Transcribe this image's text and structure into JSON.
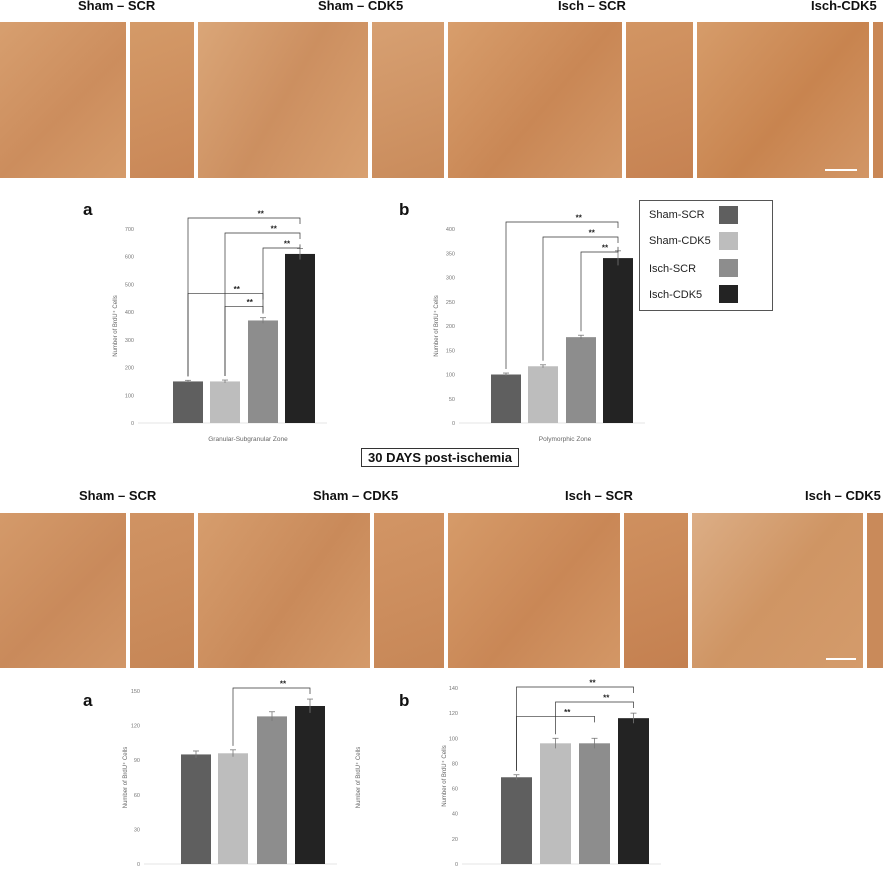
{
  "top_labels": [
    "Sham – SCR",
    "Sham – CDK5",
    "Isch – SCR",
    "Isch-CDK5"
  ],
  "middle_caption": "30 DAYS post-ischemia",
  "bottom_labels": [
    "Sham – SCR",
    "Sham – CDK5",
    "Isch – SCR",
    "Isch – CDK5"
  ],
  "legend": [
    {
      "label": "Sham-SCR",
      "color": "#5f5f5f"
    },
    {
      "label": "Sham-CDK5",
      "color": "#bdbdbd"
    },
    {
      "label": "Isch-SCR",
      "color": "#8d8d8d"
    },
    {
      "label": "Isch-CDK5",
      "color": "#232323"
    }
  ],
  "chart_data": [
    {
      "type": "bar",
      "panel": "a",
      "categories": [
        "Sham-SCR",
        "Sham-CDK5",
        "Isch-SCR",
        "Isch-CDK5"
      ],
      "values": [
        150,
        150,
        370,
        610
      ],
      "errors": [
        4,
        5,
        10,
        20
      ],
      "ylabel": "Number of BrdU⁺ Cells",
      "xlabel": "Granular-Subgranular Zone",
      "ylim": [
        0,
        700
      ],
      "yticks": [
        0,
        100,
        200,
        300,
        400,
        500,
        600,
        700
      ],
      "significance": [
        {
          "from": 0,
          "to": 3,
          "label": "**"
        },
        {
          "from": 1,
          "to": 3,
          "label": "**"
        },
        {
          "from": 2,
          "to": 3,
          "label": "**"
        },
        {
          "from": 0,
          "to": 2,
          "label": "**"
        },
        {
          "from": 1,
          "to": 2,
          "label": "**"
        }
      ]
    },
    {
      "type": "bar",
      "panel": "b",
      "categories": [
        "Sham-SCR",
        "Sham-CDK5",
        "Isch-SCR",
        "Isch-CDK5"
      ],
      "values": [
        100,
        117,
        177,
        340
      ],
      "errors": [
        3,
        3,
        4,
        15
      ],
      "ylabel": "Number of BrdU⁺ Cells",
      "xlabel": "Polymorphic Zone",
      "ylim": [
        0,
        400
      ],
      "yticks": [
        0,
        50,
        100,
        150,
        200,
        250,
        300,
        350,
        400
      ],
      "significance": [
        {
          "from": 0,
          "to": 3,
          "label": "**"
        },
        {
          "from": 1,
          "to": 3,
          "label": "**"
        },
        {
          "from": 2,
          "to": 3,
          "label": "**"
        }
      ]
    },
    {
      "type": "bar",
      "panel": "a",
      "categories": [
        "Sham-SCR",
        "Sham-CDK5",
        "Isch-SCR",
        "Isch-CDK5"
      ],
      "values": [
        95,
        96,
        128,
        137
      ],
      "errors": [
        3,
        3,
        4,
        6
      ],
      "ylabel": "Number of BrdU⁺ Cells",
      "ylabel2": "Number of BrdU⁺ Cells",
      "ylim": [
        0,
        150
      ],
      "yticks": [
        0,
        30,
        60,
        90,
        120,
        150
      ],
      "significance": [
        {
          "from": 1,
          "to": 3,
          "label": "**"
        }
      ]
    },
    {
      "type": "bar",
      "panel": "b",
      "categories": [
        "Sham-SCR",
        "Sham-CDK5",
        "Isch-SCR",
        "Isch-CDK5"
      ],
      "values": [
        69,
        96,
        96,
        116
      ],
      "errors": [
        2,
        4,
        4,
        4
      ],
      "ylabel": "Number of BrdU⁺ Cells",
      "ylim": [
        0,
        140
      ],
      "yticks": [
        0,
        20,
        40,
        60,
        80,
        100,
        120,
        140
      ],
      "significance": [
        {
          "from": 0,
          "to": 3,
          "label": "**"
        },
        {
          "from": 1,
          "to": 3,
          "label": "**"
        },
        {
          "from": 0,
          "to": 2,
          "label": "**"
        }
      ]
    }
  ]
}
